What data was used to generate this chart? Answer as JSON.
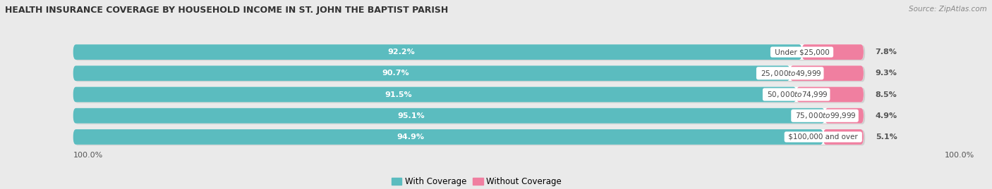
{
  "title": "HEALTH INSURANCE COVERAGE BY HOUSEHOLD INCOME IN ST. JOHN THE BAPTIST PARISH",
  "source": "Source: ZipAtlas.com",
  "categories": [
    "Under $25,000",
    "$25,000 to $49,999",
    "$50,000 to $74,999",
    "$75,000 to $99,999",
    "$100,000 and over"
  ],
  "with_coverage": [
    92.2,
    90.7,
    91.5,
    95.1,
    94.9
  ],
  "without_coverage": [
    7.8,
    9.3,
    8.5,
    4.9,
    5.1
  ],
  "color_with": "#5bbcbf",
  "color_without": "#f07fa0",
  "bg_color": "#eaeaea",
  "bar_bg_color": "#ffffff",
  "bar_shadow_color": "#d0d0d0",
  "legend_with": "With Coverage",
  "legend_without": "Without Coverage",
  "x_left_label": "100.0%",
  "x_right_label": "100.0%"
}
